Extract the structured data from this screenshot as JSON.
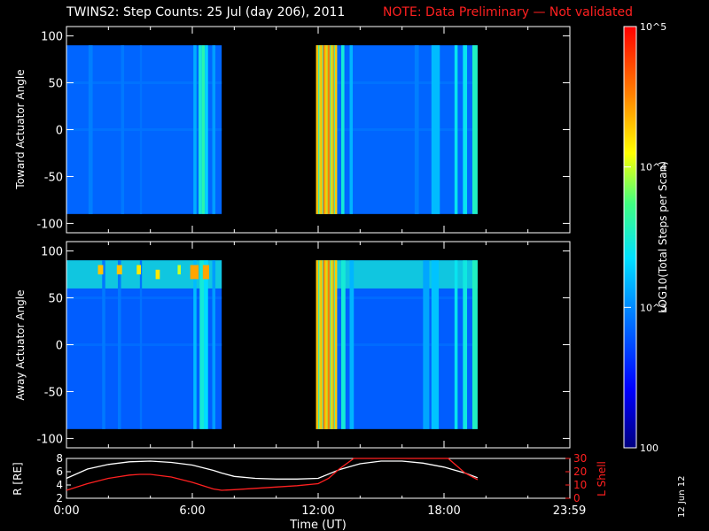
{
  "header": {
    "title": "TWINS2: Step Counts: 25 Jul (day 206), 2011",
    "note": "NOTE: Data Preliminary — Not validated"
  },
  "date_stamp": "12 Jun 12",
  "colorbar": {
    "label": "LOG10(Total Steps per Scan)",
    "ticks": [
      "100",
      "10^3",
      "10^4",
      "10^5"
    ],
    "range": [
      100,
      100000
    ],
    "scale": "log",
    "colors": [
      "#000080",
      "#0000ff",
      "#0080ff",
      "#00e0ff",
      "#40ff80",
      "#ffff00",
      "#ff8000",
      "#ff0000"
    ]
  },
  "chart_data": [
    {
      "type": "heatmap",
      "title": "",
      "ylabel": "Toward Actuator Angle",
      "xlabel": "",
      "x_unit": "hours UT",
      "xlim": [
        0,
        24
      ],
      "ylim": [
        -110,
        110
      ],
      "yticks": [
        100,
        50,
        0,
        -50,
        -100
      ],
      "data_yrange": [
        -90,
        90
      ],
      "data_intervals": [
        [
          0,
          7.4
        ],
        [
          11.9,
          19.6
        ]
      ],
      "colorscale": "log10 steps",
      "background_level": 700,
      "features": [
        {
          "x": [
            1.05,
            1.25
          ],
          "level": 900
        },
        {
          "x": [
            2.6,
            2.75
          ],
          "level": 850
        },
        {
          "x": [
            3.5,
            3.6
          ],
          "level": 800
        },
        {
          "x": [
            6.05,
            6.2
          ],
          "level": 1400
        },
        {
          "x": [
            6.3,
            6.45
          ],
          "level": 3000
        },
        {
          "x": [
            6.45,
            6.6
          ],
          "level": 4000
        },
        {
          "x": [
            6.6,
            6.75
          ],
          "level": 2000
        },
        {
          "x": [
            6.95,
            7.1
          ],
          "level": 1200
        },
        {
          "x": [
            11.9,
            12.6
          ],
          "level": 20000
        },
        {
          "x": [
            12.6,
            12.9
          ],
          "level": 15000
        },
        {
          "x": [
            13.1,
            13.25
          ],
          "level": 3000
        },
        {
          "x": [
            13.5,
            13.65
          ],
          "level": 1500
        },
        {
          "x": [
            16.6,
            16.8
          ],
          "level": 900
        },
        {
          "x": [
            17.4,
            17.8
          ],
          "level": 1600
        },
        {
          "x": [
            18.5,
            18.65
          ],
          "level": 2500
        },
        {
          "x": [
            18.9,
            19.1
          ],
          "level": 2500
        },
        {
          "x": [
            19.35,
            19.6
          ],
          "level": 3500
        }
      ]
    },
    {
      "type": "heatmap",
      "title": "",
      "ylabel": "Away Actuator Angle",
      "xlabel": "",
      "x_unit": "hours UT",
      "xlim": [
        0,
        24
      ],
      "ylim": [
        -110,
        110
      ],
      "yticks": [
        100,
        50,
        0,
        -50,
        -100
      ],
      "data_yrange": [
        -90,
        90
      ],
      "data_intervals": [
        [
          0,
          7.4
        ],
        [
          11.9,
          19.6
        ]
      ],
      "colorscale": "log10 steps",
      "background_level": 650,
      "high_angle_band": {
        "y": [
          60,
          90
        ],
        "level": 3000
      },
      "hot_spots": [
        {
          "x": [
            1.5,
            1.75
          ],
          "y": [
            75,
            85
          ],
          "level": 20000
        },
        {
          "x": [
            2.4,
            2.65
          ],
          "y": [
            75,
            85
          ],
          "level": 20000
        },
        {
          "x": [
            3.35,
            3.55
          ],
          "y": [
            75,
            85
          ],
          "level": 15000
        },
        {
          "x": [
            4.25,
            4.45
          ],
          "y": [
            70,
            80
          ],
          "level": 15000
        },
        {
          "x": [
            5.3,
            5.45
          ],
          "y": [
            75,
            85
          ],
          "level": 10000
        },
        {
          "x": [
            5.9,
            6.3
          ],
          "y": [
            70,
            85
          ],
          "level": 25000
        },
        {
          "x": [
            6.5,
            6.8
          ],
          "y": [
            70,
            85
          ],
          "level": 25000
        }
      ],
      "features": [
        {
          "x": [
            1.7,
            1.85
          ],
          "level": 850
        },
        {
          "x": [
            2.45,
            2.6
          ],
          "level": 850
        },
        {
          "x": [
            3.5,
            3.6
          ],
          "level": 800
        },
        {
          "x": [
            6.05,
            6.2
          ],
          "level": 1600
        },
        {
          "x": [
            6.35,
            6.55
          ],
          "level": 3000
        },
        {
          "x": [
            6.55,
            6.75
          ],
          "level": 2200
        },
        {
          "x": [
            6.95,
            7.1
          ],
          "level": 1200
        },
        {
          "x": [
            11.9,
            12.6
          ],
          "level": 20000
        },
        {
          "x": [
            12.6,
            12.9
          ],
          "level": 15000
        },
        {
          "x": [
            13.1,
            13.3
          ],
          "level": 3000
        },
        {
          "x": [
            13.5,
            13.7
          ],
          "level": 1500
        },
        {
          "x": [
            17.0,
            17.3
          ],
          "level": 1300
        },
        {
          "x": [
            17.4,
            17.75
          ],
          "level": 1700
        },
        {
          "x": [
            18.5,
            18.65
          ],
          "level": 2500
        },
        {
          "x": [
            18.9,
            19.1
          ],
          "level": 2800
        },
        {
          "x": [
            19.35,
            19.6
          ],
          "level": 3500
        }
      ]
    },
    {
      "type": "line",
      "title": "",
      "xlabel": "Time (UT)",
      "ylabel": "R [RE]",
      "y2label": "L Shell",
      "xlim": [
        0,
        24
      ],
      "ylim": [
        2,
        8
      ],
      "y2lim": [
        0,
        30
      ],
      "xtick_labels": [
        "0:00",
        "6:00",
        "12:00",
        "18:00",
        "23:59"
      ],
      "xtick_values": [
        0,
        6,
        12,
        18,
        23.98
      ],
      "yticks": [
        "2",
        "4",
        "6",
        "8"
      ],
      "y2ticks": [
        "0",
        "10",
        "20",
        "30"
      ],
      "series": [
        {
          "axis": "left",
          "color": "#ffffff",
          "x": [
            0,
            1,
            2,
            3,
            4,
            5,
            6,
            7,
            7.4,
            8,
            9,
            10,
            11,
            12,
            13,
            14,
            15,
            16,
            17,
            18,
            19,
            19.6
          ],
          "y": [
            5.0,
            6.4,
            7.1,
            7.5,
            7.6,
            7.4,
            7.0,
            6.2,
            5.8,
            5.3,
            5.0,
            4.9,
            4.9,
            5.0,
            6.3,
            7.2,
            7.6,
            7.6,
            7.3,
            6.7,
            5.8,
            5.1
          ]
        },
        {
          "axis": "right",
          "color": "#ff2020",
          "x": [
            0,
            1,
            2,
            3,
            3.5,
            4,
            5,
            6,
            7,
            7.4,
            8,
            9,
            10,
            11,
            12,
            12.5,
            13,
            13.7,
            18.2,
            19,
            19.6
          ],
          "y": [
            6,
            11,
            15,
            17.5,
            18,
            18,
            16,
            12,
            7,
            6,
            6.5,
            7.5,
            8.5,
            9.5,
            11,
            15,
            22,
            30,
            30,
            19,
            14
          ]
        }
      ]
    }
  ]
}
